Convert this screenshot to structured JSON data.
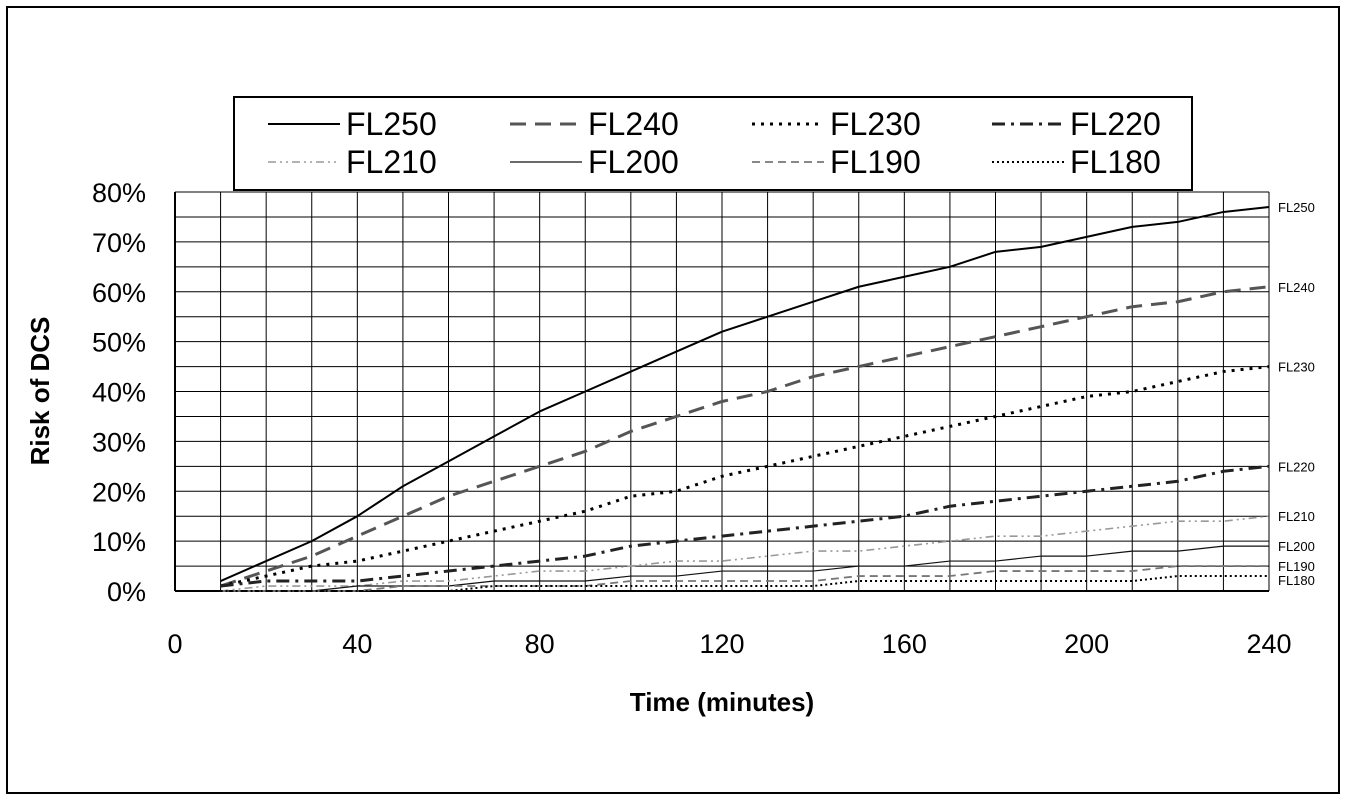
{
  "chart_data": {
    "type": "line",
    "title": "",
    "xlabel": "Time (minutes)",
    "ylabel": "Risk of DCS",
    "xlim": [
      0,
      240
    ],
    "ylim": [
      0,
      80
    ],
    "x_ticks": [
      "0",
      "40",
      "80",
      "120",
      "160",
      "200",
      "240"
    ],
    "y_ticks": [
      "0%",
      "10%",
      "20%",
      "30%",
      "40%",
      "50%",
      "60%",
      "70%",
      "80%"
    ],
    "grid": true,
    "legend_position": "top",
    "x": [
      10,
      20,
      30,
      40,
      50,
      60,
      70,
      80,
      90,
      100,
      110,
      120,
      130,
      140,
      150,
      160,
      170,
      180,
      190,
      200,
      210,
      220,
      230,
      240
    ],
    "series": [
      {
        "name": "FL250",
        "end_label": "FL250",
        "color": "#000000",
        "dash": "solid",
        "values": [
          2,
          6,
          10,
          15,
          21,
          26,
          31,
          36,
          40,
          44,
          48,
          52,
          55,
          58,
          61,
          63,
          65,
          68,
          69,
          71,
          73,
          74,
          76,
          77
        ]
      },
      {
        "name": "FL240",
        "end_label": "FL240",
        "color": "#555555",
        "dash": "longdash",
        "values": [
          1,
          4,
          7,
          11,
          15,
          19,
          22,
          25,
          28,
          32,
          35,
          38,
          40,
          43,
          45,
          47,
          49,
          51,
          53,
          55,
          57,
          58,
          60,
          61
        ]
      },
      {
        "name": "FL230",
        "end_label": "FL230",
        "color": "#000000",
        "dash": "dot",
        "values": [
          1,
          3,
          5,
          6,
          8,
          10,
          12,
          14,
          16,
          19,
          20,
          23,
          25,
          27,
          29,
          31,
          33,
          35,
          37,
          39,
          40,
          42,
          44,
          45
        ]
      },
      {
        "name": "FL220",
        "end_label": "FL220",
        "color": "#222222",
        "dash": "dashdot",
        "values": [
          1,
          2,
          2,
          2,
          3,
          4,
          5,
          6,
          7,
          9,
          10,
          11,
          12,
          13,
          14,
          15,
          17,
          18,
          19,
          20,
          21,
          22,
          24,
          25
        ]
      },
      {
        "name": "FL210",
        "end_label": "FL210",
        "color": "#999999",
        "dash": "dashdotdot",
        "values": [
          0,
          1,
          1,
          1,
          2,
          2,
          3,
          4,
          4,
          5,
          6,
          6,
          7,
          8,
          8,
          9,
          10,
          11,
          11,
          12,
          13,
          14,
          14,
          15
        ]
      },
      {
        "name": "FL200",
        "end_label": "FL200",
        "color": "#111111",
        "dash": "thin",
        "values": [
          0,
          0,
          0,
          1,
          1,
          1,
          2,
          2,
          2,
          3,
          3,
          4,
          4,
          4,
          5,
          5,
          6,
          6,
          7,
          7,
          8,
          8,
          9,
          9
        ]
      },
      {
        "name": "FL190",
        "end_label": "FL190",
        "color": "#777777",
        "dash": "dash",
        "values": [
          0,
          0,
          0,
          0,
          1,
          1,
          1,
          1,
          1,
          2,
          2,
          2,
          2,
          2,
          3,
          3,
          3,
          4,
          4,
          4,
          4,
          5,
          5,
          5
        ]
      },
      {
        "name": "FL180",
        "end_label": "FL180",
        "color": "#000000",
        "dash": "finedot",
        "values": [
          0,
          0,
          0,
          0,
          0,
          0,
          1,
          1,
          1,
          1,
          1,
          1,
          1,
          1,
          2,
          2,
          2,
          2,
          2,
          2,
          2,
          3,
          3,
          3
        ]
      }
    ]
  }
}
